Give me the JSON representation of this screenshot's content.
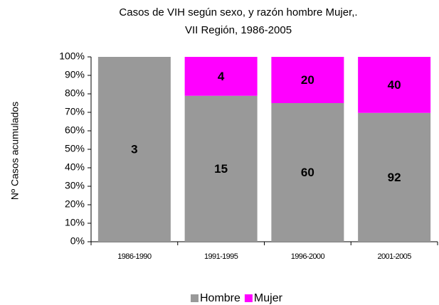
{
  "chart_data": {
    "type": "bar",
    "stacking": "percent",
    "title": [
      "Casos de VIH según sexo, y razón hombre Mujer,.",
      "VII Región, 1986-2005"
    ],
    "ylabel": "Nº Casos acumulados",
    "categories": [
      "1986-1990",
      "1991-1995",
      "1996-2000",
      "2001-2005"
    ],
    "series": [
      {
        "name": "Hombre",
        "color": "#999999",
        "values": [
          3,
          15,
          60,
          92
        ]
      },
      {
        "name": "Mujer",
        "color": "#ff00ff",
        "values": [
          null,
          4,
          20,
          40
        ]
      }
    ],
    "ylim": [
      0,
      100
    ],
    "yticks": [
      {
        "value": 0,
        "label": "0%"
      },
      {
        "value": 10,
        "label": "10%"
      },
      {
        "value": 20,
        "label": "20%"
      },
      {
        "value": 30,
        "label": "30%"
      },
      {
        "value": 40,
        "label": "40%"
      },
      {
        "value": 50,
        "label": "50%"
      },
      {
        "value": 60,
        "label": "60%"
      },
      {
        "value": 70,
        "label": "70%"
      },
      {
        "value": 80,
        "label": "80%"
      },
      {
        "value": 90,
        "label": "90%"
      },
      {
        "value": 100,
        "label": "100%"
      }
    ],
    "legend": "bottom"
  }
}
